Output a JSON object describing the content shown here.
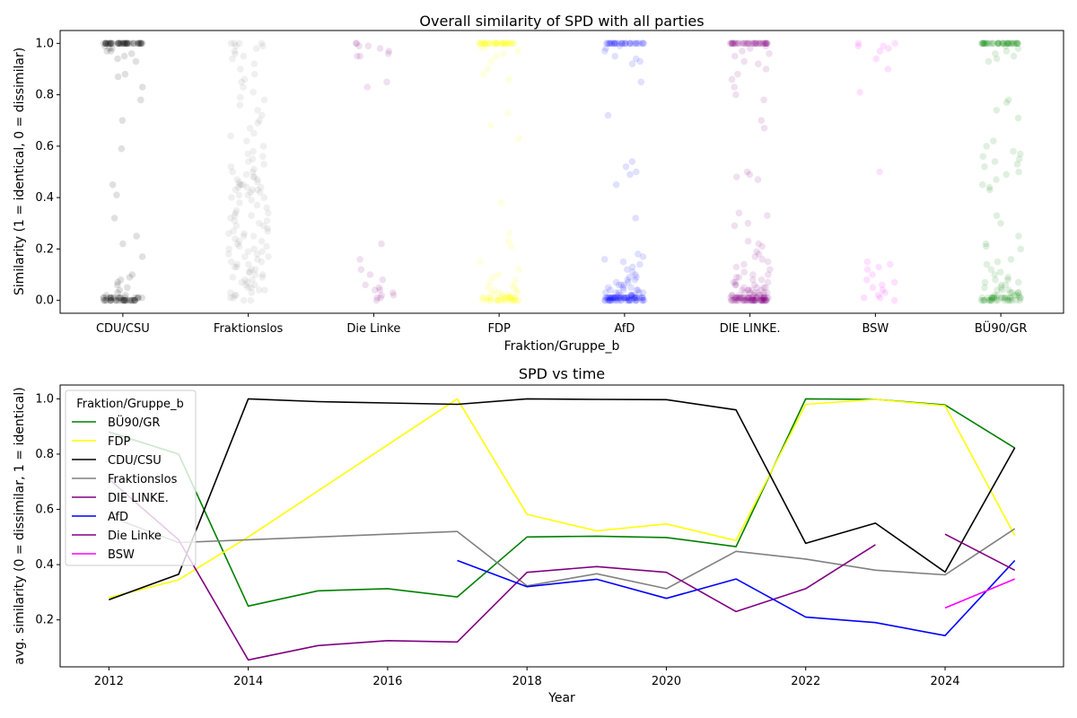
{
  "chart_data": [
    {
      "type": "scatter",
      "title": "Overall similarity of SPD with all parties",
      "xlabel": "Fraktion/Gruppe_b",
      "ylabel": "Similarity (1 = identical, 0 = dissimilar)",
      "ylim": [
        -0.05,
        1.05
      ],
      "yticks": [
        "0.0",
        "0.2",
        "0.4",
        "0.6",
        "0.8",
        "1.0"
      ],
      "grid": false,
      "categories": [
        "CDU/CSU",
        "Fraktionslos",
        "Die Linke",
        "FDP",
        "AfD",
        "DIE LINKE.",
        "BSW",
        "BÜ90/GR"
      ],
      "colors": [
        "#000000",
        "#808080",
        "#800080",
        "#ffff00",
        "#0000ff",
        "#800080",
        "#ff00ff",
        "#008000"
      ],
      "point_alpha": 0.12,
      "points": {
        "CDU/CSU": [
          1,
          1,
          1,
          1,
          1,
          1,
          1,
          1,
          1,
          1,
          1,
          1,
          1,
          1,
          1,
          1,
          1,
          1,
          1,
          1,
          1,
          1,
          1,
          1,
          1,
          1,
          1,
          1,
          1,
          1,
          1,
          1,
          1,
          1,
          1,
          1,
          1,
          1,
          1,
          1,
          1,
          1,
          1,
          1,
          1,
          1,
          1,
          1,
          1,
          1,
          0.99,
          0.98,
          0.97,
          0.96,
          0.95,
          0.94,
          0.93,
          0.97,
          0.98,
          0.88,
          0.87,
          0.83,
          0.78,
          0.7,
          0.59,
          0.45,
          0.41,
          0.32,
          0.25,
          0.22,
          0.17,
          0.1,
          0.09,
          0.08,
          0.07,
          0.06,
          0.05,
          0.04,
          0.03,
          0.02,
          0.02,
          0.01,
          0.01,
          0.01,
          0.01,
          0.01,
          0.01,
          0.01,
          0.01,
          0.01,
          0.01,
          0.01,
          0.01,
          0.01,
          0.01,
          0.01,
          0.01,
          0.01,
          0.01,
          0.01,
          0,
          0,
          0,
          0,
          0,
          0,
          0,
          0,
          0,
          0,
          0,
          0,
          0,
          0,
          0,
          0,
          0,
          0,
          0,
          0,
          0,
          0,
          0,
          0,
          0,
          0,
          0,
          0,
          0,
          0
        ],
        "Fraktionslos": [
          1,
          1,
          1,
          1,
          0.99,
          0.99,
          0.98,
          0.97,
          0.96,
          0.95,
          0.94,
          0.92,
          0.9,
          0.88,
          0.86,
          0.85,
          0.83,
          0.81,
          0.79,
          0.78,
          0.76,
          0.74,
          0.72,
          0.7,
          0.69,
          0.67,
          0.65,
          0.64,
          0.62,
          0.6,
          0.58,
          0.57,
          0.56,
          0.55,
          0.54,
          0.53,
          0.52,
          0.51,
          0.5,
          0.5,
          0.49,
          0.48,
          0.48,
          0.47,
          0.47,
          0.46,
          0.46,
          0.45,
          0.45,
          0.45,
          0.44,
          0.44,
          0.44,
          0.43,
          0.43,
          0.43,
          0.42,
          0.42,
          0.41,
          0.41,
          0.4,
          0.4,
          0.39,
          0.38,
          0.37,
          0.36,
          0.35,
          0.34,
          0.34,
          0.33,
          0.33,
          0.32,
          0.31,
          0.31,
          0.3,
          0.29,
          0.29,
          0.28,
          0.27,
          0.27,
          0.26,
          0.26,
          0.25,
          0.25,
          0.24,
          0.23,
          0.23,
          0.22,
          0.21,
          0.21,
          0.2,
          0.2,
          0.19,
          0.19,
          0.18,
          0.18,
          0.17,
          0.17,
          0.16,
          0.15,
          0.15,
          0.14,
          0.14,
          0.13,
          0.13,
          0.12,
          0.12,
          0.11,
          0.11,
          0.1,
          0.1,
          0.09,
          0.09,
          0.08,
          0.08,
          0.07,
          0.07,
          0.06,
          0.06,
          0.05,
          0.05,
          0.04,
          0.04,
          0.03,
          0.03,
          0.02,
          0.02,
          0.01,
          0.01,
          0,
          0
        ],
        "Die Linke": [
          1,
          1,
          0.99,
          0.99,
          0.98,
          0.97,
          0.96,
          0.95,
          0.95,
          0.85,
          0.83,
          0.22,
          0.16,
          0.12,
          0.1,
          0.08,
          0.06,
          0.05,
          0.04,
          0.04,
          0.03,
          0.02,
          0.02,
          0.01,
          0.01,
          0
        ],
        "FDP": [
          1,
          1,
          1,
          1,
          1,
          1,
          1,
          1,
          1,
          1,
          1,
          1,
          1,
          1,
          1,
          1,
          1,
          1,
          1,
          1,
          1,
          1,
          1,
          1,
          1,
          1,
          1,
          1,
          1,
          1,
          1,
          1,
          1,
          1,
          1,
          1,
          1,
          1,
          1,
          1,
          0.99,
          0.98,
          0.97,
          0.96,
          0.95,
          0.93,
          0.9,
          0.88,
          0.86,
          0.73,
          0.68,
          0.63,
          0.38,
          0.26,
          0.23,
          0.21,
          0.15,
          0.12,
          0.1,
          0.09,
          0.08,
          0.07,
          0.06,
          0.05,
          0.05,
          0.04,
          0.04,
          0.03,
          0.03,
          0.03,
          0.02,
          0.02,
          0.02,
          0.02,
          0.01,
          0.01,
          0.01,
          0.01,
          0.01,
          0.01,
          0.01,
          0.01,
          0.01,
          0.01,
          0.01,
          0.01,
          0.01,
          0.01,
          0.01,
          0.01,
          0.01,
          0,
          0,
          0,
          0,
          0,
          0,
          0,
          0,
          0,
          0,
          0,
          0,
          0,
          0,
          0,
          0,
          0,
          0,
          0
        ],
        "AfD": [
          1,
          1,
          1,
          1,
          1,
          1,
          1,
          1,
          1,
          1,
          1,
          1,
          1,
          1,
          1,
          1,
          1,
          1,
          1,
          1,
          1,
          1,
          1,
          1,
          1,
          1,
          1,
          1,
          1,
          1,
          0.99,
          0.98,
          0.97,
          0.95,
          0.94,
          0.93,
          0.92,
          0.85,
          0.72,
          0.54,
          0.52,
          0.5,
          0.49,
          0.45,
          0.32,
          0.18,
          0.17,
          0.16,
          0.15,
          0.14,
          0.13,
          0.12,
          0.11,
          0.1,
          0.09,
          0.09,
          0.08,
          0.08,
          0.07,
          0.07,
          0.06,
          0.06,
          0.06,
          0.05,
          0.05,
          0.05,
          0.04,
          0.04,
          0.04,
          0.04,
          0.03,
          0.03,
          0.03,
          0.03,
          0.03,
          0.02,
          0.02,
          0.02,
          0.02,
          0.02,
          0.02,
          0.02,
          0.01,
          0.01,
          0.01,
          0.01,
          0.01,
          0.01,
          0.01,
          0.01,
          0.01,
          0.01,
          0.01,
          0.01,
          0.01,
          0.01,
          0.01,
          0.01,
          0.01,
          0.01,
          0.01,
          0.01,
          0.01,
          0.01,
          0.01,
          0.01,
          0.01,
          0.01,
          0.01,
          0.01,
          0.01,
          0.01,
          0.01,
          0.01,
          0.01,
          0.01,
          0.01,
          0.01,
          0.01,
          0.01,
          0,
          0,
          0,
          0,
          0,
          0,
          0,
          0,
          0,
          0,
          0,
          0,
          0,
          0,
          0,
          0,
          0,
          0,
          0,
          0,
          0,
          0,
          0,
          0,
          0
        ],
        "DIE LINKE.": [
          1,
          1,
          1,
          1,
          1,
          1,
          1,
          1,
          1,
          1,
          1,
          1,
          1,
          1,
          1,
          1,
          1,
          1,
          1,
          1,
          1,
          1,
          1,
          1,
          1,
          1,
          1,
          1,
          1,
          1,
          1,
          1,
          1,
          1,
          1,
          1,
          1,
          1,
          1,
          1,
          0.99,
          0.98,
          0.97,
          0.96,
          0.95,
          0.93,
          0.92,
          0.9,
          0.88,
          0.86,
          0.83,
          0.8,
          0.78,
          0.7,
          0.67,
          0.5,
          0.49,
          0.48,
          0.47,
          0.34,
          0.33,
          0.3,
          0.29,
          0.23,
          0.22,
          0.21,
          0.19,
          0.18,
          0.17,
          0.16,
          0.15,
          0.14,
          0.13,
          0.12,
          0.11,
          0.1,
          0.1,
          0.09,
          0.09,
          0.08,
          0.08,
          0.07,
          0.07,
          0.07,
          0.06,
          0.06,
          0.06,
          0.05,
          0.05,
          0.05,
          0.05,
          0.04,
          0.04,
          0.04,
          0.04,
          0.04,
          0.03,
          0.03,
          0.03,
          0.03,
          0.03,
          0.03,
          0.02,
          0.02,
          0.02,
          0.02,
          0.02,
          0.02,
          0.02,
          0.02,
          0.01,
          0.01,
          0.01,
          0.01,
          0.01,
          0.01,
          0.01,
          0.01,
          0.01,
          0.01,
          0.01,
          0.01,
          0.01,
          0.01,
          0.01,
          0.01,
          0.01,
          0.01,
          0.01,
          0.01,
          0.01,
          0.01,
          0.01,
          0.01,
          0.01,
          0.01,
          0.01,
          0.01,
          0.01,
          0.01,
          0,
          0,
          0,
          0,
          0,
          0,
          0,
          0,
          0,
          0,
          0,
          0,
          0,
          0,
          0,
          0,
          0,
          0,
          0,
          0,
          0,
          0,
          0,
          0,
          0,
          0,
          0,
          0,
          0,
          0,
          0,
          0,
          0,
          0,
          0,
          0,
          0,
          0,
          0,
          0
        ],
        "BSW": [
          1,
          1,
          0.99,
          0.99,
          0.98,
          0.97,
          0.94,
          0.9,
          0.81,
          0.5,
          0.15,
          0.14,
          0.13,
          0.12,
          0.1,
          0.08,
          0.07,
          0.06,
          0.05,
          0.04,
          0.03,
          0.02,
          0.01,
          0.01,
          0
        ],
        "BÜ90/GR": [
          1,
          1,
          1,
          1,
          1,
          1,
          1,
          1,
          1,
          1,
          1,
          1,
          1,
          1,
          1,
          1,
          1,
          1,
          1,
          1,
          1,
          1,
          1,
          1,
          1,
          1,
          1,
          1,
          1,
          1,
          1,
          1,
          1,
          1,
          1,
          1,
          1,
          1,
          1,
          1,
          0.99,
          0.98,
          0.97,
          0.96,
          0.95,
          0.94,
          0.93,
          0.78,
          0.77,
          0.74,
          0.71,
          0.62,
          0.6,
          0.58,
          0.57,
          0.56,
          0.55,
          0.54,
          0.53,
          0.52,
          0.5,
          0.49,
          0.47,
          0.45,
          0.44,
          0.43,
          0.33,
          0.3,
          0.25,
          0.22,
          0.21,
          0.2,
          0.16,
          0.15,
          0.14,
          0.12,
          0.11,
          0.1,
          0.09,
          0.08,
          0.08,
          0.07,
          0.07,
          0.06,
          0.06,
          0.05,
          0.05,
          0.04,
          0.04,
          0.04,
          0.03,
          0.03,
          0.03,
          0.03,
          0.02,
          0.02,
          0.02,
          0.02,
          0.02,
          0.01,
          0.01,
          0.01,
          0.01,
          0.01,
          0.01,
          0.01,
          0.01,
          0.01,
          0.01,
          0.01,
          0.01,
          0.01,
          0.01,
          0.01,
          0.01,
          0.01,
          0,
          0,
          0,
          0,
          0,
          0,
          0,
          0,
          0,
          0,
          0,
          0,
          0,
          0,
          0,
          0,
          0,
          0
        ]
      }
    },
    {
      "type": "line",
      "title": "SPD vs time",
      "xlabel": "Year",
      "ylabel": "avg. similarity (0 = dissimilar, 1 = identical)",
      "xlim": [
        2011.3,
        2025.7
      ],
      "ylim": [
        0.03,
        1.05
      ],
      "xticks": [
        2012,
        2014,
        2016,
        2018,
        2020,
        2022,
        2024
      ],
      "yticks": [
        "0.2",
        "0.4",
        "0.6",
        "0.8",
        "1.0"
      ],
      "grid": false,
      "legend": {
        "title": "Fraktion/Gruppe_b",
        "position": "top-left"
      },
      "series": [
        {
          "name": "BÜ90/GR",
          "color": "#008000",
          "x": [
            2012,
            2013,
            2014,
            2015,
            2016,
            2017,
            2018,
            2019,
            2020,
            2021,
            2022,
            2023,
            2024,
            2025
          ],
          "y": [
            0.88,
            0.8,
            0.25,
            0.305,
            0.313,
            0.283,
            0.5,
            0.503,
            0.498,
            0.465,
            1.0,
            0.998,
            0.978,
            0.822
          ]
        },
        {
          "name": "FDP",
          "color": "#ffff00",
          "x": [
            2012,
            2013,
            2014,
            2017,
            2018,
            2019,
            2020,
            2021,
            2022,
            2023,
            2024,
            2025
          ],
          "y": [
            0.28,
            0.345,
            0.5,
            1.0,
            0.582,
            0.522,
            0.547,
            0.487,
            0.98,
            0.998,
            0.975,
            0.505
          ]
        },
        {
          "name": "CDU/CSU",
          "color": "#000000",
          "x": [
            2012,
            2013,
            2014,
            2015,
            2016,
            2017,
            2018,
            2019,
            2020,
            2021,
            2022,
            2023,
            2024,
            2025
          ],
          "y": [
            0.273,
            0.365,
            1.0,
            0.99,
            0.985,
            0.98,
            1.0,
            0.998,
            0.997,
            0.96,
            0.477,
            0.55,
            0.373,
            0.823
          ]
        },
        {
          "name": "Fraktionslos",
          "color": "#808080",
          "x": [
            2012,
            2013,
            2014,
            2015,
            2016,
            2017,
            2018,
            2019,
            2020,
            2021,
            2022,
            2023,
            2024,
            2025
          ],
          "y": [
            0.575,
            0.48,
            0.49,
            0.5,
            0.51,
            0.52,
            0.323,
            0.367,
            0.313,
            0.448,
            0.42,
            0.38,
            0.363,
            0.53
          ]
        },
        {
          "name": "DIE LINKE.",
          "color": "#800080",
          "x": [
            2012,
            2013,
            2014,
            2015,
            2016,
            2017,
            2018,
            2019,
            2020,
            2021,
            2022,
            2023
          ],
          "y": [
            0.71,
            0.49,
            0.055,
            0.107,
            0.125,
            0.12,
            0.372,
            0.393,
            0.372,
            0.23,
            0.313,
            0.472
          ]
        },
        {
          "name": "AfD",
          "color": "#0000ff",
          "x": [
            2017,
            2018,
            2019,
            2020,
            2021,
            2022,
            2023,
            2024,
            2025
          ],
          "y": [
            0.415,
            0.32,
            0.347,
            0.278,
            0.348,
            0.21,
            0.19,
            0.143,
            0.415
          ]
        },
        {
          "name": "Die Linke",
          "color": "#800080",
          "x": [
            2024,
            2025
          ],
          "y": [
            0.51,
            0.38
          ]
        },
        {
          "name": "BSW",
          "color": "#ff00ff",
          "x": [
            2024,
            2025
          ],
          "y": [
            0.243,
            0.348
          ]
        }
      ]
    }
  ]
}
